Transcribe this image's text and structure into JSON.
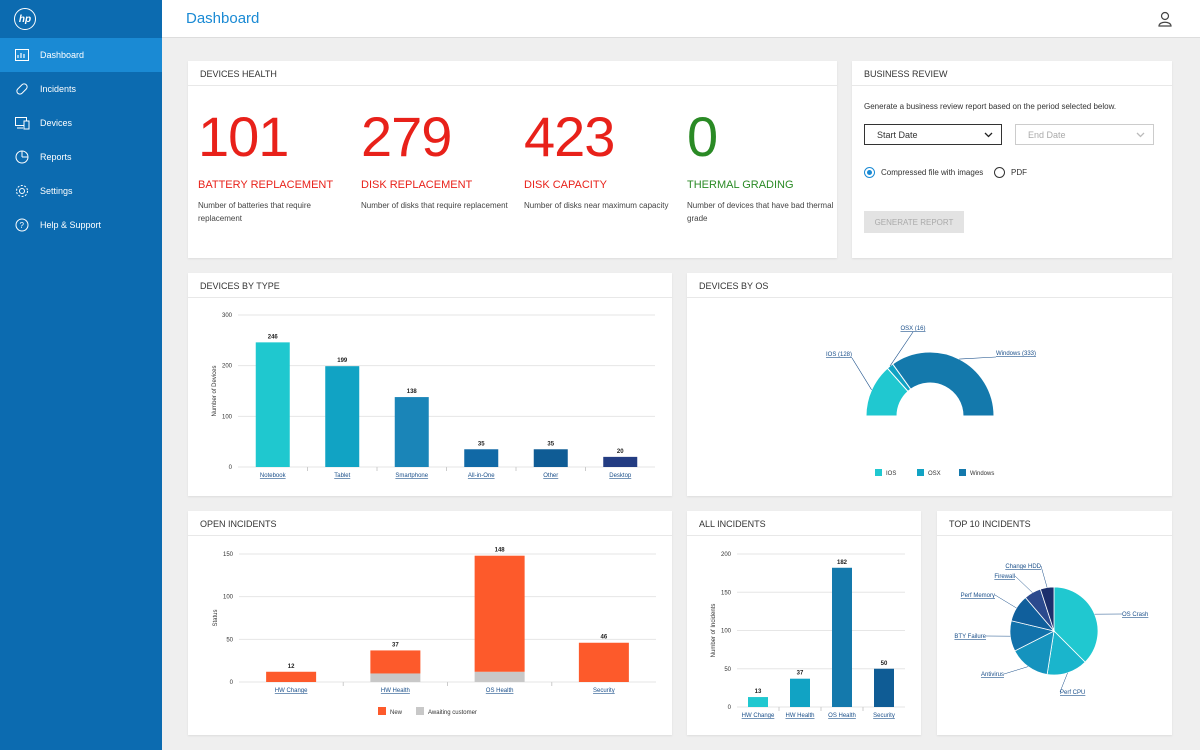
{
  "sidebar": {
    "logo": "hp",
    "items": [
      {
        "label": "Dashboard",
        "icon": "chart-icon"
      },
      {
        "label": "Incidents",
        "icon": "bandage-icon"
      },
      {
        "label": "Devices",
        "icon": "devices-icon"
      },
      {
        "label": "Reports",
        "icon": "pie-icon"
      },
      {
        "label": "Settings",
        "icon": "gear-icon"
      },
      {
        "label": "Help & Support",
        "icon": "help-icon"
      }
    ]
  },
  "header": {
    "title": "Dashboard"
  },
  "devices_health": {
    "title": "DEVICES HEALTH",
    "metrics": [
      {
        "value": "101",
        "title": "BATTERY REPLACEMENT",
        "desc": "Number of batteries that require replacement",
        "color": "#e8211a"
      },
      {
        "value": "279",
        "title": "DISK REPLACEMENT",
        "desc": "Number of disks that require replacement",
        "color": "#e8211a"
      },
      {
        "value": "423",
        "title": "DISK CAPACITY",
        "desc": "Number of disks near maximum capacity",
        "color": "#e8211a"
      },
      {
        "value": "0",
        "title": "THERMAL GRADING",
        "desc": "Number of devices that have bad thermal grade",
        "color": "#2a8a25"
      }
    ]
  },
  "business_review": {
    "title": "BUSINESS REVIEW",
    "desc": "Generate a business review report based on the period selected below.",
    "start_date": "Start Date",
    "end_date": "End Date",
    "option_compressed": "Compressed file with images",
    "option_pdf": "PDF",
    "button": "GENERATE REPORT"
  },
  "devices_by_type": {
    "title": "DEVICES BY TYPE",
    "ylabel": "Number of Devices",
    "yticks": [
      "0",
      "100",
      "200",
      "300"
    ],
    "categories": [
      "Notebook",
      "Tablet",
      "Smartphone",
      "All-in-One",
      "Other",
      "Desktop"
    ],
    "values": [
      246,
      199,
      138,
      35,
      35,
      20
    ],
    "labels": [
      "246",
      "199",
      "138",
      "35",
      "35",
      "20"
    ],
    "colors": [
      "#1fc8cf",
      "#11a3c4",
      "#1a85b8",
      "#1169a6",
      "#0f5c95",
      "#233c82"
    ]
  },
  "devices_by_os": {
    "title": "DEVICES BY OS",
    "slices": [
      {
        "name": "IOS",
        "value": 128,
        "label": "IOS (128)",
        "color": "#20c8d0"
      },
      {
        "name": "OSX",
        "value": 16,
        "label": "OSX (16)",
        "color": "#11a3c4"
      },
      {
        "name": "Windows",
        "value": 333,
        "label": "Windows (333)",
        "color": "#1479ac"
      }
    ]
  },
  "open_incidents": {
    "title": "OPEN INCIDENTS",
    "ylabel": "Status",
    "yticks": [
      "0",
      "50",
      "100",
      "150"
    ],
    "categories": [
      "HW Change",
      "HW Health",
      "OS Health",
      "Security"
    ],
    "new": [
      12,
      27,
      136,
      46
    ],
    "awaiting": [
      0,
      10,
      12,
      0
    ],
    "labels": [
      "12",
      "37",
      "148",
      "46"
    ],
    "legend": [
      "New",
      "Awaiting customer"
    ],
    "colors": {
      "new": "#fd5a2b",
      "awaiting": "#c8c8c8"
    }
  },
  "all_incidents": {
    "title": "ALL INCIDENTS",
    "ylabel": "Number of Incidents",
    "yticks": [
      "0",
      "50",
      "100",
      "150",
      "200"
    ],
    "categories": [
      "HW Change",
      "HW Health",
      "OS Health",
      "Security"
    ],
    "values": [
      13,
      37,
      182,
      50
    ],
    "labels": [
      "13",
      "37",
      "182",
      "50"
    ],
    "colors": [
      "#20c8d0",
      "#11a3c4",
      "#1479ac",
      "#0f5c95"
    ]
  },
  "top_incidents": {
    "title": "TOP 10 INCIDENTS",
    "slices": [
      {
        "name": "OS Crash",
        "value": 30,
        "color": "#20c8d0"
      },
      {
        "name": "Perf CPU",
        "value": 12,
        "color": "#1ab5cc"
      },
      {
        "name": "Antivirus",
        "value": 12,
        "color": "#1593be"
      },
      {
        "name": "BTY Failure",
        "value": 9,
        "color": "#1272ab"
      },
      {
        "name": "Perf Memory",
        "value": 8,
        "color": "#105f9c"
      },
      {
        "name": "Firewall",
        "value": 5,
        "color": "#2b4a8e"
      },
      {
        "name": "Change HDD",
        "value": 4,
        "color": "#1c2f6c"
      }
    ]
  }
}
